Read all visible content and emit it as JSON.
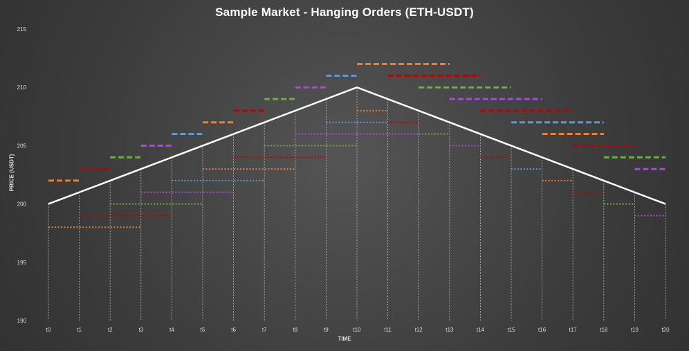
{
  "chart_data": {
    "type": "line",
    "title": "Sample Market - Hanging Orders (ETH-USDT)",
    "xlabel": "TIME",
    "ylabel": "PRICE (USDT)",
    "categories": [
      "t0",
      "t1",
      "t2",
      "t3",
      "t4",
      "t5",
      "t6",
      "t7",
      "t8",
      "t9",
      "t10",
      "t11",
      "t12",
      "t13",
      "t14",
      "t15",
      "t16",
      "t17",
      "t18",
      "t19",
      "t20"
    ],
    "ylim": [
      190,
      215
    ],
    "yticks": [
      "190",
      "195",
      "200",
      "205",
      "210",
      "215"
    ],
    "grid": "vertical-dashed-per-tick",
    "price_line": {
      "color": "#ffffff",
      "values": [
        200,
        201,
        202,
        203,
        204,
        205,
        206,
        207,
        208,
        209,
        210,
        209,
        208,
        207,
        206,
        205,
        204,
        203,
        202,
        201,
        200
      ]
    },
    "order_levels": [
      {
        "color": "#ed7d31",
        "style": "dashed",
        "x0": 0,
        "x1": 1,
        "y": 202
      },
      {
        "color": "#ed7d31",
        "style": "dotted",
        "x0": 0,
        "x1": 3,
        "y": 198
      },
      {
        "color": "#c00000",
        "style": "dashed",
        "x0": 1,
        "x1": 2,
        "y": 203
      },
      {
        "color": "#c00000",
        "style": "dotted",
        "x0": 1,
        "x1": 4,
        "y": 199
      },
      {
        "color": "#70ad47",
        "style": "dashed",
        "x0": 2,
        "x1": 3,
        "y": 204
      },
      {
        "color": "#70ad47",
        "style": "dotted",
        "x0": 2,
        "x1": 5,
        "y": 200
      },
      {
        "color": "#a64ae0",
        "style": "dashed",
        "x0": 3,
        "x1": 4,
        "y": 205
      },
      {
        "color": "#a64ae0",
        "style": "dotted",
        "x0": 3,
        "x1": 6,
        "y": 201
      },
      {
        "color": "#5b9bd5",
        "style": "dashed",
        "x0": 4,
        "x1": 5,
        "y": 206
      },
      {
        "color": "#5b9bd5",
        "style": "dotted",
        "x0": 4,
        "x1": 7,
        "y": 202
      },
      {
        "color": "#ed7d31",
        "style": "dashed",
        "x0": 5,
        "x1": 6,
        "y": 207
      },
      {
        "color": "#ed7d31",
        "style": "dotted",
        "x0": 5,
        "x1": 8,
        "y": 203
      },
      {
        "color": "#c00000",
        "style": "dashed",
        "x0": 6,
        "x1": 7,
        "y": 208
      },
      {
        "color": "#c00000",
        "style": "dotted",
        "x0": 6,
        "x1": 9,
        "y": 204
      },
      {
        "color": "#70ad47",
        "style": "dashed",
        "x0": 7,
        "x1": 8,
        "y": 209
      },
      {
        "color": "#70ad47",
        "style": "dotted",
        "x0": 7,
        "x1": 10,
        "y": 205
      },
      {
        "color": "#a64ae0",
        "style": "dashed",
        "x0": 8,
        "x1": 9,
        "y": 210
      },
      {
        "color": "#a64ae0",
        "style": "dotted",
        "x0": 8,
        "x1": 12,
        "y": 206
      },
      {
        "color": "#5b9bd5",
        "style": "dashed",
        "x0": 9,
        "x1": 10,
        "y": 211
      },
      {
        "color": "#5b9bd5",
        "style": "dotted",
        "x0": 9,
        "x1": 11,
        "y": 207
      },
      {
        "color": "#ed7d31",
        "style": "dashed",
        "x0": 10,
        "x1": 13,
        "y": 212
      },
      {
        "color": "#ed7d31",
        "style": "dotted",
        "x0": 10,
        "x1": 11,
        "y": 208
      },
      {
        "color": "#c00000",
        "style": "dashed",
        "x0": 11,
        "x1": 14,
        "y": 211
      },
      {
        "color": "#c00000",
        "style": "dotted",
        "x0": 11,
        "x1": 12,
        "y": 207
      },
      {
        "color": "#70ad47",
        "style": "dashed",
        "x0": 12,
        "x1": 15,
        "y": 210
      },
      {
        "color": "#70ad47",
        "style": "dotted",
        "x0": 12,
        "x1": 13,
        "y": 206
      },
      {
        "color": "#a64ae0",
        "style": "dashed",
        "x0": 13,
        "x1": 16,
        "y": 209
      },
      {
        "color": "#a64ae0",
        "style": "dotted",
        "x0": 13,
        "x1": 14,
        "y": 205
      },
      {
        "color": "#c00000",
        "style": "dashed",
        "x0": 14,
        "x1": 17,
        "y": 208
      },
      {
        "color": "#c00000",
        "style": "dotted",
        "x0": 14,
        "x1": 15,
        "y": 204
      },
      {
        "color": "#5b9bd5",
        "style": "dashed",
        "x0": 15,
        "x1": 18,
        "y": 207
      },
      {
        "color": "#5b9bd5",
        "style": "dotted",
        "x0": 15,
        "x1": 16,
        "y": 203
      },
      {
        "color": "#ed7d31",
        "style": "dashed",
        "x0": 16,
        "x1": 18,
        "y": 206
      },
      {
        "color": "#ed7d31",
        "style": "dotted",
        "x0": 16,
        "x1": 17,
        "y": 202
      },
      {
        "color": "#c00000",
        "style": "dashed",
        "x0": 17,
        "x1": 19,
        "y": 205
      },
      {
        "color": "#c00000",
        "style": "dotted",
        "x0": 17,
        "x1": 18,
        "y": 201
      },
      {
        "color": "#70ad47",
        "style": "dashed",
        "x0": 18,
        "x1": 20,
        "y": 204
      },
      {
        "color": "#70ad47",
        "style": "dotted",
        "x0": 18,
        "x1": 19,
        "y": 200
      },
      {
        "color": "#a64ae0",
        "style": "dashed",
        "x0": 19,
        "x1": 20,
        "y": 203
      },
      {
        "color": "#a64ae0",
        "style": "dotted",
        "x0": 19,
        "x1": 20,
        "y": 199
      }
    ]
  }
}
